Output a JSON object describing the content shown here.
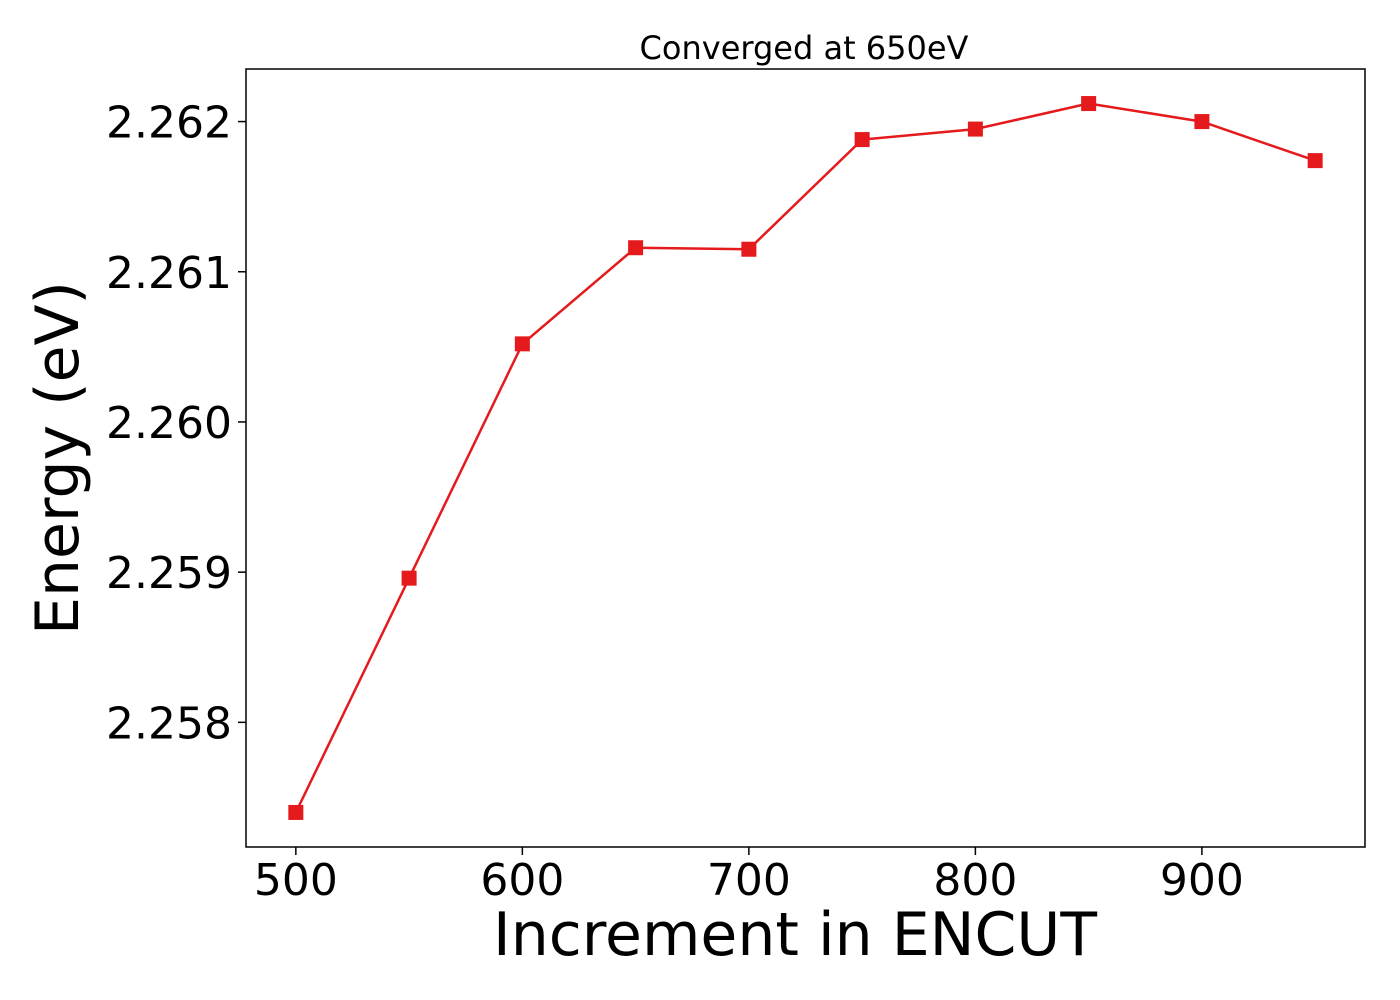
{
  "chart_data": {
    "type": "line",
    "title": "Converged at 650eV",
    "xlabel": "Increment in ENCUT",
    "ylabel": "Energy (eV)",
    "x": [
      500,
      550,
      600,
      650,
      700,
      750,
      800,
      850,
      900,
      950
    ],
    "series": [
      {
        "values": [
          2.2574,
          2.25896,
          2.26052,
          2.26116,
          2.26115,
          2.26188,
          2.26195,
          2.26212,
          2.262,
          2.26174
        ],
        "color": "#e41a1c",
        "marker": "square"
      }
    ],
    "xlim": [
      478,
      972
    ],
    "ylim": [
      2.25717,
      2.26235
    ],
    "x_ticks": [
      500,
      600,
      700,
      800,
      900
    ],
    "x_tick_labels": [
      "500",
      "600",
      "700",
      "800",
      "900"
    ],
    "y_ticks": [
      2.258,
      2.259,
      2.26,
      2.261,
      2.262
    ],
    "y_tick_labels": [
      "2.258",
      "2.259",
      "2.260",
      "2.261",
      "2.262"
    ],
    "grid": false,
    "legend": "none"
  }
}
